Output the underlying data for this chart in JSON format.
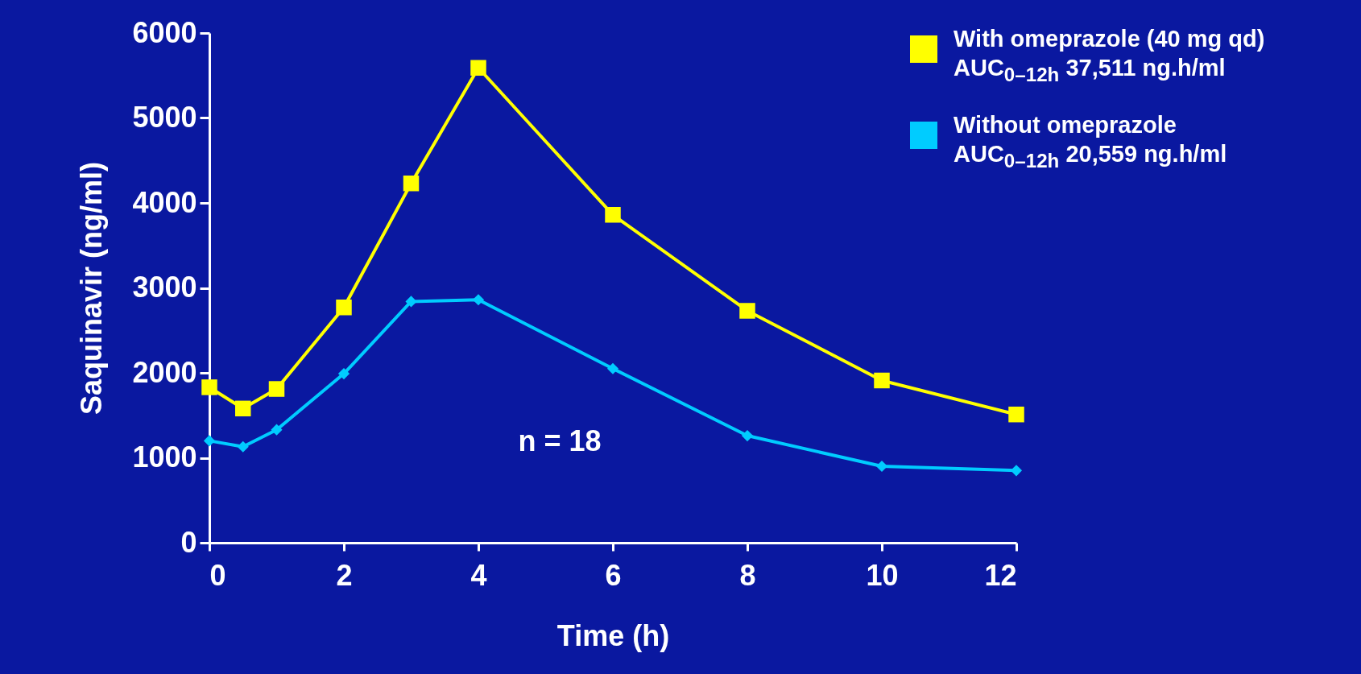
{
  "chart_data": {
    "type": "line",
    "xlabel": "Time (h)",
    "ylabel": "Saquinavir (ng/ml)",
    "x": [
      0,
      0.5,
      1,
      2,
      3,
      4,
      6,
      8,
      10,
      12
    ],
    "series": [
      {
        "name": "With omeprazole (40 mg qd)\nAUC$_{0–12h}$ 37,511 ng.h/ml",
        "color": "#ffff00",
        "marker": "square",
        "values": [
          1830,
          1580,
          1810,
          2770,
          4230,
          5590,
          3860,
          2730,
          1910,
          1510
        ]
      },
      {
        "name": "Without omeprazole\nAUC$_{0–12h}$ 20,559 ng.h/ml",
        "color": "#00ccff",
        "marker": "diamond",
        "values": [
          1200,
          1130,
          1330,
          1990,
          2840,
          2860,
          2050,
          1260,
          900,
          850
        ]
      }
    ],
    "xlim": [
      0,
      12
    ],
    "xticks": [
      0,
      2,
      4,
      6,
      8,
      10,
      12
    ],
    "ylim": [
      0,
      6000
    ],
    "yticks": [
      0,
      1000,
      2000,
      3000,
      4000,
      5000,
      6000
    ],
    "grid": false,
    "legend": "top right",
    "annotations": [
      "n = 18"
    ]
  }
}
